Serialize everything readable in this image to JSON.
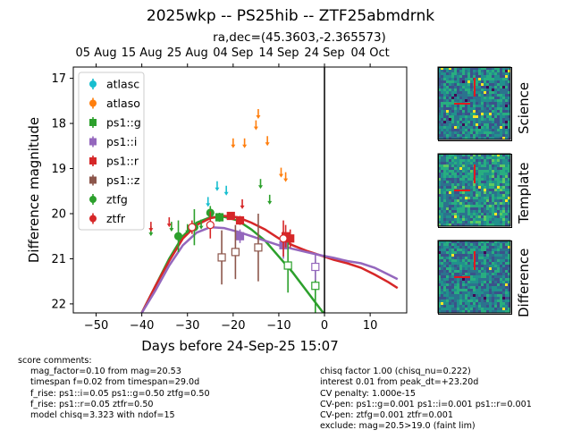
{
  "header": {
    "title": "2025wkp -- PS25hib -- ZTF25abmdrnk",
    "subtitle": "ra,dec=(45.3603,-2.365573)"
  },
  "chart_data": {
    "type": "scatter",
    "xlabel": "Days before 24-Sep-25 15:07",
    "ylabel": "Difference magnitude",
    "xlim": [
      -55,
      18
    ],
    "ylim": [
      22.2,
      16.75
    ],
    "y_inverted": true,
    "x_ticks": [
      -50,
      -40,
      -30,
      -20,
      -10,
      0,
      10
    ],
    "y_ticks": [
      17,
      18,
      19,
      20,
      21,
      22
    ],
    "top_axis": {
      "labels": [
        "05 Aug",
        "15 Aug",
        "25 Aug",
        "04 Sep",
        "14 Sep",
        "24 Sep",
        "04 Oct"
      ],
      "positions": [
        -50,
        -40,
        -30,
        -20,
        -10,
        0,
        10
      ]
    },
    "peak_line_x": 0,
    "legend_placement": "top-left",
    "series": [
      {
        "name": "atlasc",
        "color": "#17becf",
        "marker": "circle",
        "upper_limits": [
          [
            -25.5,
            19.75
          ],
          [
            -23.5,
            19.4
          ],
          [
            -21.5,
            19.5
          ]
        ]
      },
      {
        "name": "atlaso",
        "color": "#ff7f0e",
        "marker": "circle",
        "upper_limits": [
          [
            -20,
            18.45
          ],
          [
            -17.5,
            18.45
          ],
          [
            -15,
            18.05
          ],
          [
            -14.5,
            17.8
          ],
          [
            -12.5,
            18.4
          ],
          [
            -9.5,
            19.1
          ],
          [
            -8.5,
            19.2
          ]
        ]
      },
      {
        "name": "ps1::g",
        "color": "#2ca02c",
        "marker": "square",
        "points": [
          [
            -23,
            20.08,
            0.1,
            false
          ],
          [
            -8,
            21.15,
            0.6,
            true
          ],
          [
            -2,
            21.6,
            0.6,
            true
          ]
        ]
      },
      {
        "name": "ps1::i",
        "color": "#9467bd",
        "marker": "square",
        "points": [
          [
            -18.5,
            20.5,
            0.15,
            false
          ],
          [
            -9,
            20.7,
            0.3,
            false
          ],
          [
            -2,
            21.18,
            0.3,
            true
          ]
        ]
      },
      {
        "name": "ps1::r",
        "color": "#d62728",
        "marker": "square",
        "points": [
          [
            -20.5,
            20.05,
            0.05,
            false
          ],
          [
            -18.5,
            20.15,
            0.1,
            false
          ],
          [
            -8.5,
            20.5,
            0.25,
            false
          ],
          [
            -7.5,
            20.55,
            0.2,
            false
          ]
        ]
      },
      {
        "name": "ps1::z",
        "color": "#8c564b",
        "marker": "square",
        "points": [
          [
            -22.5,
            20.97,
            0.6,
            true
          ],
          [
            -19.5,
            20.85,
            0.6,
            true
          ],
          [
            -14.5,
            20.75,
            0.75,
            true
          ]
        ]
      },
      {
        "name": "ztfg",
        "color": "#2ca02c",
        "marker": "circle",
        "points": [
          [
            -32,
            20.5,
            0.35,
            false
          ],
          [
            -28.5,
            20.3,
            0.4,
            false
          ],
          [
            -25,
            19.98,
            0.15,
            false
          ]
        ],
        "upper_limits": [
          [
            -38,
            20.4
          ],
          [
            -33.5,
            20.3
          ],
          [
            -30,
            20.35
          ],
          [
            -27,
            20.25
          ],
          [
            -14,
            19.35
          ],
          [
            -12,
            19.7
          ]
        ]
      },
      {
        "name": "ztfr",
        "color": "#d62728",
        "marker": "circle",
        "points": [
          [
            -29,
            20.3,
            0.15,
            true
          ],
          [
            -25,
            20.25,
            0.3,
            true
          ],
          [
            -9,
            20.55,
            0.4,
            true
          ]
        ],
        "upper_limits": [
          [
            -38,
            20.3
          ],
          [
            -34,
            20.2
          ],
          [
            -18,
            19.8
          ]
        ]
      }
    ],
    "model_curves": [
      {
        "band": "green",
        "color": "#2ca02c",
        "x": [
          -40,
          -37,
          -34,
          -31,
          -28,
          -25,
          -22,
          -19,
          -16,
          -13,
          -10,
          -7,
          -4,
          -1,
          2,
          5,
          6
        ],
        "y": [
          22.2,
          21.6,
          21.0,
          20.5,
          20.2,
          20.08,
          20.07,
          20.15,
          20.35,
          20.6,
          20.95,
          21.3,
          21.7,
          22.1,
          22.5,
          22.9,
          23.0
        ]
      },
      {
        "band": "red",
        "color": "#d62728",
        "x": [
          -40,
          -37,
          -34,
          -31,
          -28,
          -25,
          -22,
          -19,
          -16,
          -13,
          -10,
          -7,
          -4,
          -1,
          2,
          5,
          8,
          11,
          14,
          16
        ],
        "y": [
          22.2,
          21.6,
          21.05,
          20.55,
          20.25,
          20.1,
          20.05,
          20.08,
          20.2,
          20.35,
          20.55,
          20.7,
          20.82,
          20.92,
          21.02,
          21.1,
          21.2,
          21.35,
          21.52,
          21.65
        ]
      },
      {
        "band": "purple",
        "color": "#9467bd",
        "x": [
          -40,
          -37,
          -34,
          -31,
          -28,
          -25,
          -22,
          -19,
          -16,
          -13,
          -10,
          -7,
          -4,
          -1,
          2,
          5,
          8,
          11,
          14,
          16
        ],
        "y": [
          22.2,
          21.7,
          21.15,
          20.7,
          20.42,
          20.3,
          20.32,
          20.4,
          20.5,
          20.6,
          20.7,
          20.78,
          20.85,
          20.92,
          20.98,
          21.05,
          21.1,
          21.2,
          21.35,
          21.45
        ]
      }
    ]
  },
  "stamps": {
    "science_label": "Science",
    "template_label": "Template",
    "difference_label": "Difference"
  },
  "comments": {
    "head": "score comments:",
    "left": [
      "mag_factor=0.10 from mag=20.53",
      "timespan f=0.02 from timespan=29.0d",
      "f_rise: ps1::i=0.05 ps1::g=0.50 ztfg=0.50",
      "f_rise: ps1::r=0.05 ztfr=0.50",
      "model chisq=3.323 with ndof=15"
    ],
    "right": [
      "chisq factor 1.00 (chisq_nu=0.222)",
      "interest 0.01 from peak_dt=+23.20d",
      "CV penalty: 1.000e-15",
      "CV-pen: ps1::g=0.001 ps1::i=0.001 ps1::r=0.001",
      "CV-pen: ztfg=0.001 ztfr=0.001",
      "exclude: mag=20.5>19.0 (faint lim)"
    ]
  }
}
